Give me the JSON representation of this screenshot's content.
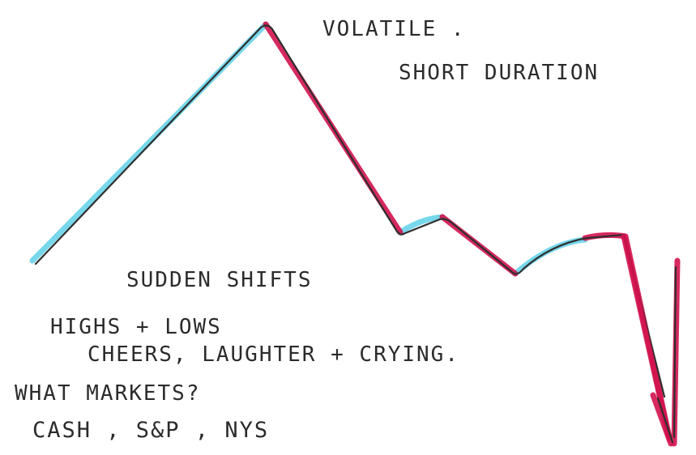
{
  "colors": {
    "rise": "#5fd0e8",
    "fall": "#d2124e",
    "ink": "#2f2f2f"
  },
  "annotations": {
    "top_line1": "VOLATILE .",
    "top_line2": "SHORT DURATION",
    "middle": "SUDDEN SHIFTS",
    "list_line1": "HIGHS + LOWS",
    "list_line2": "CHEERS, LAUGHTER + CRYING.",
    "question": "WHAT MARKETS?",
    "markets": "CASH , S&P , NYS"
  }
}
